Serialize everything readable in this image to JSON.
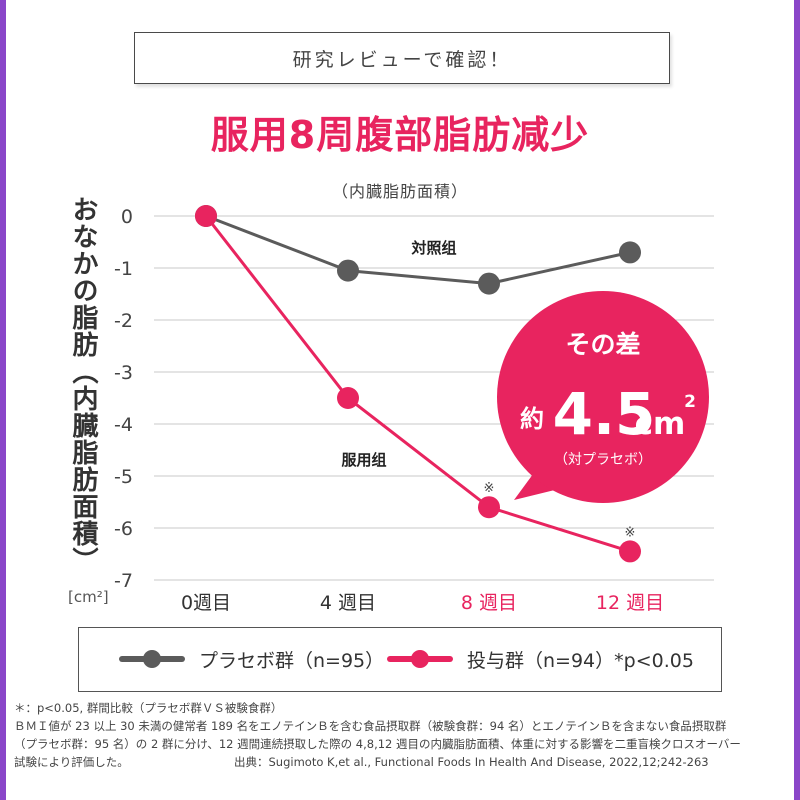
{
  "header": {
    "review_label": "研究レビューで確認！"
  },
  "title": "服用8周腹部脂肪减少",
  "subtitle": "（内臓脂肪面積）",
  "chart_data": {
    "type": "line",
    "categories": [
      "0週目",
      "4 週目",
      "8 週目",
      "12 週目"
    ],
    "category_colors": [
      "#333333",
      "#333333",
      "#e8245f",
      "#e8245f"
    ],
    "ylabel": "おなかの脂肪（内臓脂肪面積）",
    "yunit": "[cm²]",
    "ylim": [
      -7,
      0
    ],
    "yticks": [
      "0",
      "-1",
      "-2",
      "-3",
      "-4",
      "-5",
      "-6",
      "-7"
    ],
    "grid": true,
    "series": [
      {
        "name": "対照组",
        "color": "#5b5b5b",
        "values": [
          0,
          -1.05,
          -1.3,
          -0.7
        ]
      },
      {
        "name": "服用组",
        "color": "#e8245f",
        "values": [
          0,
          -3.5,
          -5.6,
          -6.45
        ]
      }
    ],
    "annotations": [
      {
        "text": "※",
        "category_index": 2
      },
      {
        "text": "※",
        "category_index": 3
      }
    ]
  },
  "callout": {
    "line1": "その差",
    "prefix": "約",
    "value": "4.5",
    "unit": "cm",
    "sup": "2",
    "note": "（対プラセボ）",
    "color": "#e8245f"
  },
  "legend": [
    {
      "label": "プラセボ群（n=95）",
      "color": "#5b5b5b"
    },
    {
      "label": "投与群（n=94）*p<0.05",
      "color": "#e8245f"
    }
  ],
  "footnotes": [
    "＊：p<0.05, 群間比較（プラセボ群ＶＳ被験食群）",
    "ＢＭＩ値が 23 以上 30 未満の健常者 189 名をエノテインＢを含む食品摂取群（被験食群：94 名）とエノテインＢを含まない食品摂取群",
    "（プラセボ群：95 名）の 2 群に分け、12 週間連続摂取した際の 4,8,12 週目の内臓脂肪面積、体重に対する影響を二重盲検クロスオーバー",
    "試験により評価した。"
  ],
  "source": "出典：Sugimoto K,et al., Functional Foods In Health And Disease, 2022,12;242-263"
}
